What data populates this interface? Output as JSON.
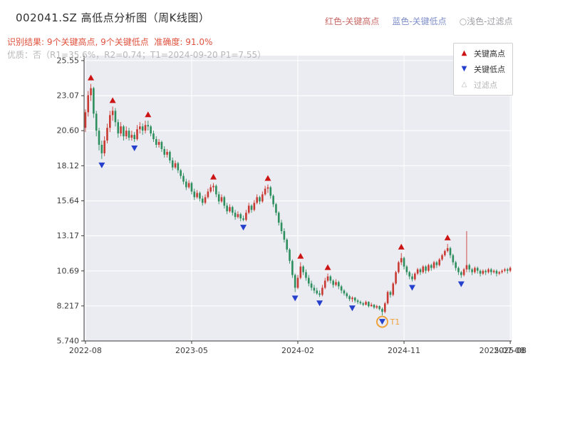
{
  "header": {
    "title": "002041.SZ 高低点分析图（周K线图）",
    "legend_inline": [
      {
        "label": "红色-关键高点",
        "color": "#c96a67"
      },
      {
        "label": "蓝色-关键低点",
        "color": "#7f8fc9"
      },
      {
        "label": "○浅色-过滤点",
        "color": "#a0a0a6"
      }
    ],
    "result_line": "识别结果: 9个关键高点, 9个关键低点  准确度: 91.0%",
    "result_color": "#e0523f",
    "quality_line": "优质：否（R1=35.6%，R2=0.74；T1=2024-09-20 P1=7.55）",
    "quality_color": "#b8b8b8"
  },
  "legend_box": {
    "items": [
      {
        "glyph": "▲",
        "label": "关键高点",
        "marker_color": "#cc1414",
        "label_color": "#333333"
      },
      {
        "glyph": "▼",
        "label": "关键低点",
        "marker_color": "#2440cc",
        "label_color": "#333333"
      },
      {
        "glyph": "△",
        "label": "过滤点",
        "marker_color": "#b5b5b5",
        "label_color": "#b5b5b5"
      }
    ]
  },
  "chart_data": {
    "type": "candlestick",
    "title": "002041.SZ 高低点分析图（周K线图）",
    "interval": "weekly",
    "grid": true,
    "ylim": [
      5.74,
      25.9
    ],
    "y_ticks": [
      "25.55",
      "23.07",
      "20.60",
      "18.12",
      "15.64",
      "13.17",
      "10.69",
      "8.217",
      "5.740"
    ],
    "x_ticks": [
      {
        "index": 0,
        "label": "2022-08"
      },
      {
        "index": 39,
        "label": "2023-05"
      },
      {
        "index": 78,
        "label": "2024-02"
      },
      {
        "index": 117,
        "label": "2024-11"
      },
      {
        "index": 156,
        "label": "2025-08"
      }
    ],
    "extra_x_label": {
      "index": 153,
      "label": "2025-07-08"
    },
    "candles": [
      [
        20.8,
        22.1,
        20.5,
        21.9
      ],
      [
        21.9,
        23.4,
        21.6,
        23.1
      ],
      [
        23.1,
        23.9,
        22.7,
        23.6
      ],
      [
        23.6,
        23.7,
        21.5,
        21.8
      ],
      [
        21.8,
        22.0,
        20.2,
        20.6
      ],
      [
        20.6,
        20.8,
        19.2,
        19.6
      ],
      [
        19.6,
        19.9,
        18.6,
        19.0
      ],
      [
        19.0,
        20.2,
        18.8,
        19.9
      ],
      [
        19.9,
        21.1,
        19.7,
        20.8
      ],
      [
        20.8,
        22.0,
        20.5,
        21.7
      ],
      [
        21.7,
        22.3,
        21.3,
        22.0
      ],
      [
        22.0,
        22.2,
        20.9,
        21.2
      ],
      [
        21.2,
        21.4,
        20.1,
        20.4
      ],
      [
        20.4,
        21.2,
        20.2,
        20.9
      ],
      [
        20.9,
        21.0,
        19.9,
        20.2
      ],
      [
        20.2,
        20.9,
        20.0,
        20.6
      ],
      [
        20.6,
        20.8,
        19.9,
        20.1
      ],
      [
        20.1,
        20.6,
        19.9,
        20.3
      ],
      [
        20.3,
        20.5,
        19.8,
        20.0
      ],
      [
        20.0,
        21.0,
        19.9,
        20.7
      ],
      [
        20.7,
        21.2,
        20.4,
        20.9
      ],
      [
        20.9,
        21.1,
        20.3,
        20.6
      ],
      [
        20.6,
        21.3,
        20.4,
        21.0
      ],
      [
        21.0,
        21.3,
        20.6,
        20.9
      ],
      [
        20.9,
        21.0,
        20.2,
        20.4
      ],
      [
        20.4,
        20.6,
        19.8,
        20.0
      ],
      [
        20.0,
        20.2,
        19.4,
        19.6
      ],
      [
        19.6,
        20.0,
        19.4,
        19.8
      ],
      [
        19.8,
        19.9,
        19.1,
        19.3
      ],
      [
        19.3,
        19.5,
        18.7,
        18.9
      ],
      [
        18.9,
        19.3,
        18.7,
        19.1
      ],
      [
        19.1,
        19.2,
        18.3,
        18.5
      ],
      [
        18.5,
        18.7,
        17.8,
        18.0
      ],
      [
        18.0,
        18.5,
        17.9,
        18.3
      ],
      [
        18.3,
        18.4,
        17.6,
        17.8
      ],
      [
        17.8,
        17.9,
        17.2,
        17.4
      ],
      [
        17.4,
        17.6,
        16.8,
        17.0
      ],
      [
        17.0,
        17.2,
        16.4,
        16.6
      ],
      [
        16.6,
        17.1,
        16.5,
        16.9
      ],
      [
        16.9,
        17.0,
        16.1,
        16.3
      ],
      [
        16.3,
        16.5,
        15.7,
        15.9
      ],
      [
        15.9,
        16.4,
        15.8,
        16.2
      ],
      [
        16.2,
        16.3,
        15.6,
        15.8
      ],
      [
        15.8,
        16.0,
        15.3,
        15.5
      ],
      [
        15.5,
        16.1,
        15.4,
        15.9
      ],
      [
        15.9,
        16.5,
        15.8,
        16.3
      ],
      [
        16.3,
        16.8,
        16.2,
        16.6
      ],
      [
        16.6,
        16.9,
        16.3,
        16.7
      ],
      [
        16.7,
        16.8,
        15.9,
        16.1
      ],
      [
        16.1,
        16.3,
        15.4,
        15.6
      ],
      [
        15.6,
        16.1,
        15.5,
        15.9
      ],
      [
        15.9,
        16.0,
        15.1,
        15.3
      ],
      [
        15.3,
        15.5,
        14.7,
        14.9
      ],
      [
        14.9,
        15.4,
        14.8,
        15.2
      ],
      [
        15.2,
        15.3,
        14.6,
        14.8
      ],
      [
        14.8,
        15.0,
        14.3,
        14.5
      ],
      [
        14.5,
        14.9,
        14.4,
        14.7
      ],
      [
        14.7,
        14.8,
        14.2,
        14.4
      ],
      [
        14.4,
        14.6,
        14.2,
        14.3
      ],
      [
        14.3,
        15.0,
        14.2,
        14.8
      ],
      [
        14.8,
        15.5,
        14.7,
        15.3
      ],
      [
        15.3,
        15.4,
        14.8,
        15.0
      ],
      [
        15.0,
        15.7,
        14.9,
        15.5
      ],
      [
        15.5,
        16.1,
        15.4,
        15.9
      ],
      [
        15.9,
        16.0,
        15.4,
        15.6
      ],
      [
        15.6,
        16.3,
        15.5,
        16.1
      ],
      [
        16.1,
        16.7,
        16.0,
        16.5
      ],
      [
        16.5,
        16.8,
        16.2,
        16.6
      ],
      [
        16.6,
        16.7,
        15.8,
        16.0
      ],
      [
        16.0,
        16.1,
        15.2,
        15.4
      ],
      [
        15.4,
        15.5,
        14.6,
        14.8
      ],
      [
        14.8,
        14.9,
        13.9,
        14.1
      ],
      [
        14.1,
        14.3,
        13.3,
        13.5
      ],
      [
        13.5,
        13.7,
        12.7,
        12.9
      ],
      [
        12.9,
        13.0,
        12.0,
        12.2
      ],
      [
        12.2,
        12.3,
        11.2,
        11.4
      ],
      [
        11.4,
        11.5,
        10.2,
        10.4
      ],
      [
        10.4,
        10.5,
        9.2,
        9.5
      ],
      [
        9.5,
        10.4,
        9.4,
        10.2
      ],
      [
        10.2,
        11.3,
        10.1,
        11.0
      ],
      [
        11.0,
        11.1,
        10.4,
        10.6
      ],
      [
        10.6,
        10.8,
        10.0,
        10.2
      ],
      [
        10.2,
        10.4,
        9.6,
        9.8
      ],
      [
        9.8,
        10.0,
        9.3,
        9.5
      ],
      [
        9.5,
        9.7,
        9.1,
        9.3
      ],
      [
        9.3,
        9.5,
        9.0,
        9.1
      ],
      [
        9.1,
        9.3,
        8.85,
        9.0
      ],
      [
        9.0,
        9.7,
        8.9,
        9.5
      ],
      [
        9.5,
        10.2,
        9.4,
        10.0
      ],
      [
        10.0,
        10.5,
        9.9,
        10.3
      ],
      [
        10.3,
        10.4,
        9.8,
        10.0
      ],
      [
        10.0,
        10.1,
        9.5,
        9.7
      ],
      [
        9.7,
        10.1,
        9.6,
        9.9
      ],
      [
        9.9,
        10.0,
        9.4,
        9.6
      ],
      [
        9.6,
        9.7,
        9.1,
        9.3
      ],
      [
        9.3,
        9.4,
        8.95,
        9.1
      ],
      [
        9.1,
        9.2,
        8.75,
        8.9
      ],
      [
        8.9,
        9.0,
        8.55,
        8.7
      ],
      [
        8.7,
        8.9,
        8.5,
        8.8
      ],
      [
        8.8,
        8.85,
        8.45,
        8.6
      ],
      [
        8.6,
        8.7,
        8.35,
        8.5
      ],
      [
        8.5,
        8.6,
        8.3,
        8.4
      ],
      [
        8.4,
        8.5,
        8.2,
        8.3
      ],
      [
        8.3,
        8.6,
        8.25,
        8.5
      ],
      [
        8.5,
        8.55,
        8.1,
        8.2
      ],
      [
        8.2,
        8.45,
        8.15,
        8.3
      ],
      [
        8.3,
        8.35,
        8.0,
        8.1
      ],
      [
        8.1,
        8.3,
        8.0,
        8.2
      ],
      [
        8.2,
        8.25,
        7.9,
        8.0
      ],
      [
        8.0,
        8.1,
        7.55,
        7.8
      ],
      [
        7.8,
        8.5,
        7.7,
        8.4
      ],
      [
        8.4,
        9.3,
        8.3,
        9.2
      ],
      [
        9.2,
        9.3,
        8.8,
        9.0
      ],
      [
        9.0,
        9.9,
        8.9,
        9.8
      ],
      [
        9.8,
        10.7,
        9.7,
        10.6
      ],
      [
        10.6,
        11.4,
        10.5,
        11.3
      ],
      [
        11.3,
        11.95,
        11.1,
        11.6
      ],
      [
        11.6,
        11.7,
        10.8,
        11.0
      ],
      [
        11.0,
        11.1,
        10.4,
        10.6
      ],
      [
        10.6,
        10.7,
        10.1,
        10.3
      ],
      [
        10.3,
        10.5,
        9.95,
        10.1
      ],
      [
        10.1,
        10.6,
        10.0,
        10.5
      ],
      [
        10.5,
        10.9,
        10.4,
        10.8
      ],
      [
        10.8,
        10.9,
        10.4,
        10.6
      ],
      [
        10.6,
        11.1,
        10.5,
        11.0
      ],
      [
        11.0,
        11.1,
        10.5,
        10.7
      ],
      [
        10.7,
        11.2,
        10.6,
        11.1
      ],
      [
        11.1,
        11.2,
        10.7,
        10.9
      ],
      [
        10.9,
        11.4,
        10.8,
        11.3
      ],
      [
        11.3,
        11.4,
        10.9,
        11.1
      ],
      [
        11.1,
        11.6,
        11.0,
        11.5
      ],
      [
        11.5,
        11.9,
        11.4,
        11.8
      ],
      [
        11.8,
        12.2,
        11.7,
        12.1
      ],
      [
        12.1,
        12.6,
        12.0,
        12.3
      ],
      [
        12.3,
        12.4,
        11.6,
        11.8
      ],
      [
        11.8,
        11.9,
        11.1,
        11.3
      ],
      [
        11.3,
        11.4,
        10.7,
        10.9
      ],
      [
        10.9,
        11.0,
        10.4,
        10.6
      ],
      [
        10.6,
        10.7,
        10.2,
        10.4
      ],
      [
        10.4,
        10.9,
        10.3,
        10.8
      ],
      [
        10.8,
        13.5,
        10.6,
        11.1
      ],
      [
        11.1,
        11.2,
        10.6,
        10.8
      ],
      [
        10.8,
        10.9,
        10.4,
        10.6
      ],
      [
        10.6,
        11.0,
        10.5,
        10.9
      ],
      [
        10.9,
        11.0,
        10.5,
        10.7
      ],
      [
        10.7,
        10.8,
        10.3,
        10.5
      ],
      [
        10.5,
        10.8,
        10.4,
        10.7
      ],
      [
        10.7,
        10.8,
        10.4,
        10.6
      ],
      [
        10.6,
        10.9,
        10.5,
        10.8
      ],
      [
        10.8,
        10.9,
        10.4,
        10.6
      ],
      [
        10.6,
        10.8,
        10.5,
        10.7
      ],
      [
        10.7,
        10.8,
        10.3,
        10.5
      ],
      [
        10.5,
        10.7,
        10.4,
        10.6
      ],
      [
        10.6,
        10.8,
        10.5,
        10.7
      ],
      [
        10.7,
        10.9,
        10.6,
        10.8
      ],
      [
        10.8,
        10.9,
        10.5,
        10.7
      ],
      [
        10.7,
        11.0,
        10.6,
        10.9
      ]
    ],
    "key_highs": [
      {
        "index": 2,
        "price": 23.9
      },
      {
        "index": 10,
        "price": 22.3
      },
      {
        "index": 23,
        "price": 21.3
      },
      {
        "index": 47,
        "price": 16.9
      },
      {
        "index": 67,
        "price": 16.8
      },
      {
        "index": 79,
        "price": 11.3
      },
      {
        "index": 89,
        "price": 10.5
      },
      {
        "index": 116,
        "price": 11.95
      },
      {
        "index": 133,
        "price": 12.6
      }
    ],
    "key_lows": [
      {
        "index": 6,
        "price": 18.6
      },
      {
        "index": 18,
        "price": 19.8
      },
      {
        "index": 58,
        "price": 14.2
      },
      {
        "index": 77,
        "price": 9.2
      },
      {
        "index": 86,
        "price": 8.85
      },
      {
        "index": 98,
        "price": 8.5
      },
      {
        "index": 109,
        "price": 7.55
      },
      {
        "index": 120,
        "price": 9.95
      },
      {
        "index": 138,
        "price": 10.2
      }
    ],
    "t1": {
      "index": 109,
      "price": 7.55,
      "label": "T1",
      "color": "#eea33c"
    },
    "colors": {
      "up": "#c93a32",
      "down": "#2e8f5e",
      "high_marker": "#cc1414",
      "low_marker": "#2440cc",
      "plot_bg": "#ebebf2",
      "grid": "#ffffff",
      "spine": "#3a3a3a",
      "tick_text": "#3d3d3d"
    }
  }
}
